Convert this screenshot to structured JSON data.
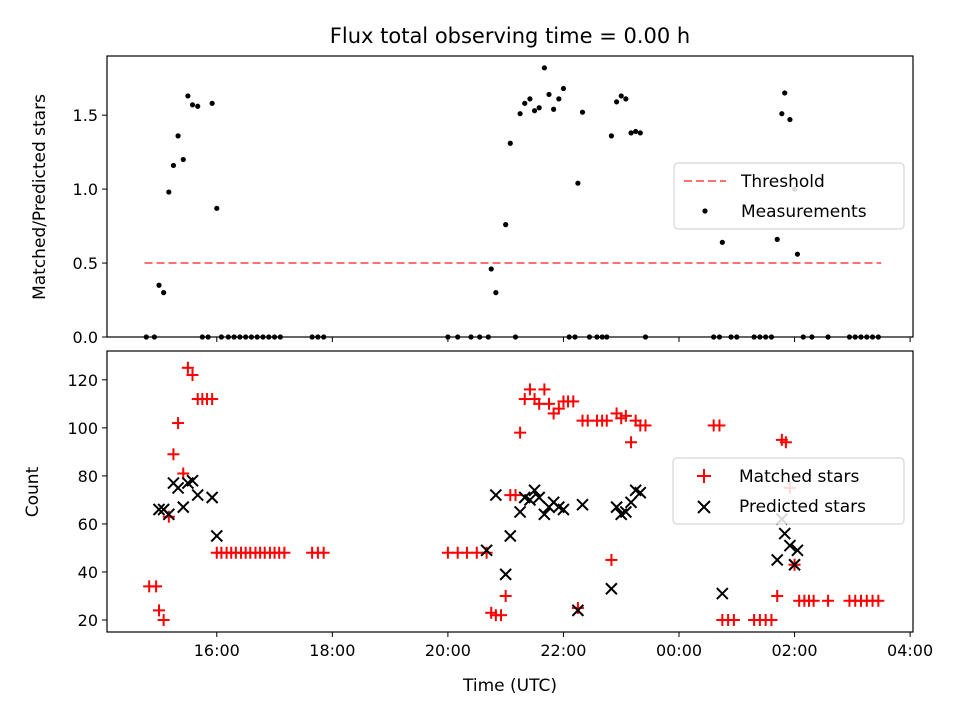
{
  "figure": {
    "title": "Flux total observing time = 0.00 h",
    "xlabel": "Time (UTC)",
    "x_tick_labels": [
      "16:00",
      "18:00",
      "20:00",
      "22:00",
      "00:00",
      "02:00",
      "04:00"
    ],
    "x_ticks_hours": [
      16,
      18,
      20,
      22,
      24,
      26,
      28
    ],
    "xlim_hours": [
      14.1,
      28.05
    ]
  },
  "chart_data": [
    {
      "type": "scatter",
      "ylabel": "Matched/Predicted stars",
      "ylim": [
        0,
        1.9
      ],
      "y_ticks": [
        0,
        0.5,
        1.0,
        1.5
      ],
      "y_tick_labels": [
        "0.0",
        "0.5",
        "1.0",
        "1.5"
      ],
      "legend": {
        "placement": "center-right",
        "entries": [
          "Threshold",
          "Measurements"
        ]
      },
      "threshold": {
        "name": "Threshold",
        "y": 0.5,
        "x_start": 14.75,
        "x_end": 27.5,
        "color": "#ff7070",
        "style": "dashed"
      },
      "series": [
        {
          "name": "Measurements",
          "color": "#000000",
          "marker": "dot",
          "points": [
            [
              14.78,
              0
            ],
            [
              14.92,
              0
            ],
            [
              15.0,
              0.35
            ],
            [
              15.08,
              0.3
            ],
            [
              15.17,
              0.98
            ],
            [
              15.25,
              1.16
            ],
            [
              15.33,
              1.36
            ],
            [
              15.42,
              1.2
            ],
            [
              15.5,
              1.63
            ],
            [
              15.58,
              1.57
            ],
            [
              15.67,
              1.56
            ],
            [
              15.75,
              0
            ],
            [
              15.85,
              0
            ],
            [
              15.92,
              1.58
            ],
            [
              16.0,
              0.87
            ],
            [
              16.08,
              0
            ],
            [
              16.2,
              0
            ],
            [
              16.3,
              0
            ],
            [
              16.4,
              0
            ],
            [
              16.5,
              0
            ],
            [
              16.6,
              0
            ],
            [
              16.7,
              0
            ],
            [
              16.8,
              0
            ],
            [
              16.9,
              0
            ],
            [
              17.0,
              0
            ],
            [
              17.1,
              0
            ],
            [
              17.65,
              0
            ],
            [
              17.75,
              0
            ],
            [
              17.85,
              0
            ],
            [
              20.0,
              0
            ],
            [
              20.17,
              0
            ],
            [
              20.4,
              0
            ],
            [
              20.55,
              0
            ],
            [
              20.7,
              0
            ],
            [
              20.75,
              0.46
            ],
            [
              20.83,
              0.3
            ],
            [
              21.0,
              0.76
            ],
            [
              21.08,
              1.31
            ],
            [
              21.17,
              0
            ],
            [
              21.25,
              1.51
            ],
            [
              21.33,
              1.58
            ],
            [
              21.42,
              1.61
            ],
            [
              21.5,
              1.53
            ],
            [
              21.58,
              1.55
            ],
            [
              21.67,
              1.82
            ],
            [
              21.75,
              1.64
            ],
            [
              21.83,
              1.54
            ],
            [
              21.92,
              1.61
            ],
            [
              22.0,
              1.68
            ],
            [
              22.1,
              0
            ],
            [
              22.2,
              0
            ],
            [
              22.25,
              1.04
            ],
            [
              22.33,
              1.52
            ],
            [
              22.45,
              0
            ],
            [
              22.58,
              0
            ],
            [
              22.67,
              0
            ],
            [
              22.75,
              0
            ],
            [
              22.83,
              1.36
            ],
            [
              22.92,
              1.59
            ],
            [
              23.0,
              1.63
            ],
            [
              23.08,
              1.61
            ],
            [
              23.17,
              1.38
            ],
            [
              23.25,
              1.39
            ],
            [
              23.33,
              1.38
            ],
            [
              23.42,
              0
            ],
            [
              24.6,
              0
            ],
            [
              24.7,
              0
            ],
            [
              24.75,
              0.64
            ],
            [
              24.9,
              0
            ],
            [
              25.0,
              0
            ],
            [
              25.3,
              0
            ],
            [
              25.4,
              0
            ],
            [
              25.5,
              0
            ],
            [
              25.6,
              0
            ],
            [
              25.7,
              0.66
            ],
            [
              25.78,
              1.51
            ],
            [
              25.83,
              1.65
            ],
            [
              25.92,
              1.47
            ],
            [
              26.0,
              1.0
            ],
            [
              26.05,
              0.56
            ],
            [
              26.15,
              0
            ],
            [
              26.3,
              0
            ],
            [
              26.58,
              0
            ],
            [
              26.95,
              0
            ],
            [
              27.05,
              0
            ],
            [
              27.15,
              0
            ],
            [
              27.25,
              0
            ],
            [
              27.35,
              0
            ],
            [
              27.45,
              0
            ]
          ]
        }
      ]
    },
    {
      "type": "scatter",
      "ylabel": "Count",
      "ylim": [
        15,
        132
      ],
      "y_ticks": [
        20,
        40,
        60,
        80,
        100,
        120
      ],
      "y_tick_labels": [
        "20",
        "40",
        "60",
        "80",
        "100",
        "120"
      ],
      "legend": {
        "placement": "center-right",
        "entries": [
          "Matched stars",
          "Predicted stars"
        ]
      },
      "series": [
        {
          "name": "Matched stars",
          "color": "#ff0000",
          "marker": "plus",
          "points": [
            [
              14.83,
              34
            ],
            [
              14.95,
              34
            ],
            [
              15.0,
              24
            ],
            [
              15.08,
              20
            ],
            [
              15.17,
              63
            ],
            [
              15.25,
              89
            ],
            [
              15.33,
              102
            ],
            [
              15.42,
              81
            ],
            [
              15.5,
              125
            ],
            [
              15.58,
              122
            ],
            [
              15.67,
              112
            ],
            [
              15.75,
              112
            ],
            [
              15.83,
              112
            ],
            [
              15.92,
              112
            ],
            [
              16.0,
              48
            ],
            [
              16.08,
              48
            ],
            [
              16.17,
              48
            ],
            [
              16.25,
              48
            ],
            [
              16.33,
              48
            ],
            [
              16.42,
              48
            ],
            [
              16.5,
              48
            ],
            [
              16.58,
              48
            ],
            [
              16.67,
              48
            ],
            [
              16.75,
              48
            ],
            [
              16.83,
              48
            ],
            [
              16.92,
              48
            ],
            [
              17.0,
              48
            ],
            [
              17.08,
              48
            ],
            [
              17.17,
              48
            ],
            [
              17.65,
              48
            ],
            [
              17.75,
              48
            ],
            [
              17.85,
              48
            ],
            [
              20.0,
              48
            ],
            [
              20.17,
              48
            ],
            [
              20.33,
              48
            ],
            [
              20.5,
              48
            ],
            [
              20.67,
              48
            ],
            [
              20.75,
              23
            ],
            [
              20.83,
              22
            ],
            [
              20.92,
              22
            ],
            [
              21.0,
              30
            ],
            [
              21.08,
              72
            ],
            [
              21.17,
              72
            ],
            [
              21.25,
              98
            ],
            [
              21.33,
              112
            ],
            [
              21.42,
              116
            ],
            [
              21.5,
              112
            ],
            [
              21.58,
              110
            ],
            [
              21.67,
              116
            ],
            [
              21.75,
              110
            ],
            [
              21.83,
              106
            ],
            [
              21.92,
              108
            ],
            [
              22.0,
              111
            ],
            [
              22.08,
              111
            ],
            [
              22.17,
              111
            ],
            [
              22.25,
              25
            ],
            [
              22.33,
              103
            ],
            [
              22.42,
              103
            ],
            [
              22.58,
              103
            ],
            [
              22.67,
              103
            ],
            [
              22.75,
              103
            ],
            [
              22.83,
              45
            ],
            [
              22.92,
              106
            ],
            [
              23.0,
              104
            ],
            [
              23.08,
              105
            ],
            [
              23.17,
              94
            ],
            [
              23.25,
              103
            ],
            [
              23.33,
              101
            ],
            [
              23.42,
              101
            ],
            [
              24.6,
              101
            ],
            [
              24.7,
              101
            ],
            [
              24.75,
              20
            ],
            [
              24.85,
              20
            ],
            [
              24.95,
              20
            ],
            [
              25.3,
              20
            ],
            [
              25.4,
              20
            ],
            [
              25.5,
              20
            ],
            [
              25.6,
              20
            ],
            [
              25.7,
              30
            ],
            [
              25.78,
              95
            ],
            [
              25.85,
              94
            ],
            [
              25.92,
              75
            ],
            [
              26.0,
              43
            ],
            [
              26.08,
              28
            ],
            [
              26.17,
              28
            ],
            [
              26.25,
              28
            ],
            [
              26.33,
              28
            ],
            [
              26.58,
              28
            ],
            [
              26.95,
              28
            ],
            [
              27.05,
              28
            ],
            [
              27.15,
              28
            ],
            [
              27.25,
              28
            ],
            [
              27.35,
              28
            ],
            [
              27.45,
              28
            ]
          ]
        },
        {
          "name": "Predicted stars",
          "color": "#000000",
          "marker": "x",
          "points": [
            [
              15.0,
              66
            ],
            [
              15.08,
              66
            ],
            [
              15.17,
              64
            ],
            [
              15.25,
              77
            ],
            [
              15.33,
              75
            ],
            [
              15.42,
              67
            ],
            [
              15.5,
              77
            ],
            [
              15.58,
              78
            ],
            [
              15.67,
              72
            ],
            [
              15.92,
              71
            ],
            [
              16.0,
              55
            ],
            [
              20.67,
              49
            ],
            [
              20.83,
              72
            ],
            [
              21.0,
              39
            ],
            [
              21.08,
              55
            ],
            [
              21.25,
              65
            ],
            [
              21.33,
              71
            ],
            [
              21.42,
              70
            ],
            [
              21.5,
              74
            ],
            [
              21.58,
              71
            ],
            [
              21.67,
              64
            ],
            [
              21.75,
              67
            ],
            [
              21.83,
              69
            ],
            [
              21.92,
              67
            ],
            [
              22.0,
              66
            ],
            [
              22.25,
              24
            ],
            [
              22.33,
              68
            ],
            [
              22.83,
              33
            ],
            [
              22.92,
              67
            ],
            [
              23.0,
              64
            ],
            [
              23.08,
              65
            ],
            [
              23.17,
              69
            ],
            [
              23.25,
              74
            ],
            [
              23.33,
              73
            ],
            [
              24.75,
              31
            ],
            [
              25.7,
              45
            ],
            [
              25.78,
              62
            ],
            [
              25.83,
              56
            ],
            [
              25.92,
              51
            ],
            [
              26.0,
              43
            ],
            [
              26.05,
              49
            ]
          ]
        }
      ]
    }
  ]
}
